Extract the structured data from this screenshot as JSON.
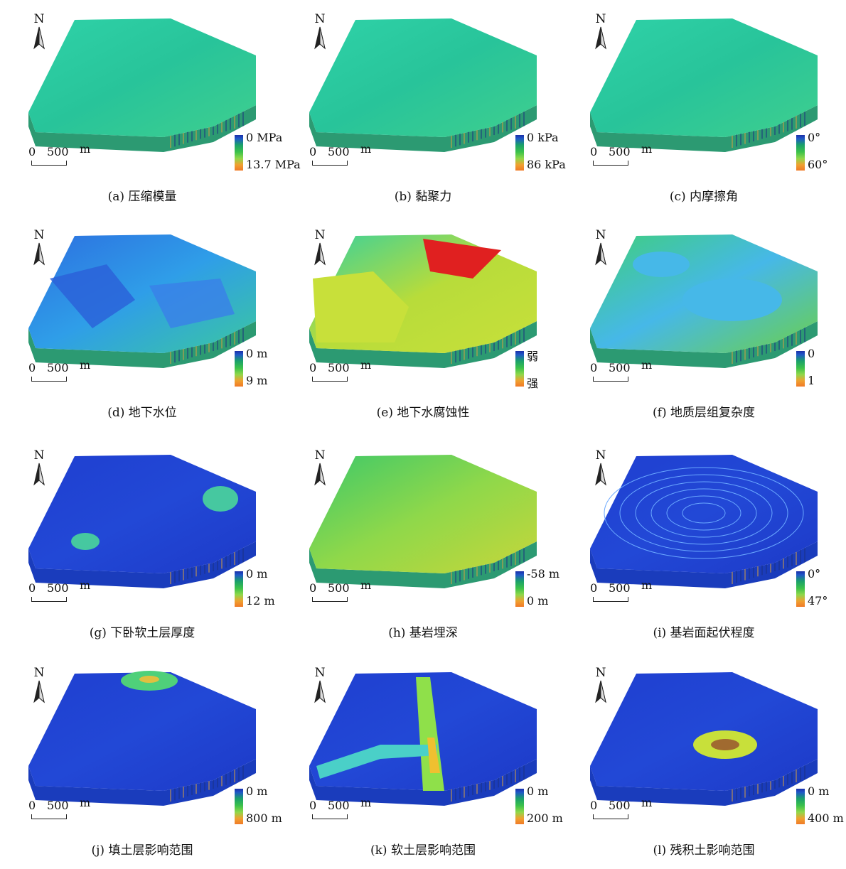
{
  "north_label": "N",
  "scale": {
    "zero": "0",
    "distance": "500",
    "unit": "m"
  },
  "panels": [
    {
      "caption": "(a)  压缩模量",
      "legend_top": "0 MPa",
      "legend_bottom": "13.7 MPa",
      "palette": "cyan-green",
      "feature": "none"
    },
    {
      "caption": "(b)  黏聚力",
      "legend_top": "0 kPa",
      "legend_bottom": "86  kPa",
      "palette": "cyan-green",
      "feature": "none"
    },
    {
      "caption": "(c)  内摩擦角",
      "legend_top": "0°",
      "legend_bottom": "60°",
      "palette": "cyan-green",
      "feature": "none"
    },
    {
      "caption": "(d)   地下水位",
      "legend_top": "0 m",
      "legend_bottom": "9 m",
      "palette": "blue-cyan",
      "feature": "facets"
    },
    {
      "caption": "(e)  地下水腐蚀性",
      "legend_top": "弱",
      "legend_bottom": "强",
      "palette": "cyan-yellow",
      "feature": "red"
    },
    {
      "caption": "(f)   地质层组复杂度",
      "legend_top": "0",
      "legend_bottom": "1",
      "palette": "green-lightblue",
      "feature": "patches"
    },
    {
      "caption": "(g) 下卧软土层厚度",
      "legend_top": "0 m",
      "legend_bottom": "12 m",
      "palette": "blue",
      "feature": "spots"
    },
    {
      "caption": "(h)   基岩埋深",
      "legend_top": "-58 m",
      "legend_bottom": "0 m",
      "palette": "green-yellow",
      "feature": "none"
    },
    {
      "caption": "(i)  基岩面起伏程度",
      "legend_top": "0°",
      "legend_bottom": "47°",
      "palette": "blue",
      "feature": "contours"
    },
    {
      "caption": "(j)   填土层影响范围",
      "legend_top": "0 m",
      "legend_bottom": "800 m",
      "palette": "blue",
      "feature": "top-spot"
    },
    {
      "caption": "(k)  软土层影响范围",
      "legend_top": "0 m",
      "legend_bottom": "200 m",
      "palette": "blue",
      "feature": "channels"
    },
    {
      "caption": "(l)  残积土影响范围",
      "legend_top": "0 m",
      "legend_bottom": "400 m",
      "palette": "blue",
      "feature": "center-spot"
    }
  ],
  "colors": {
    "cyan_green": "#2fd2a8",
    "blue": "#1f3fd0",
    "ramp_blue": "#1b2fa8",
    "ramp_orange": "#f07a28",
    "red": "#e02020",
    "yellow": "#c8e03a",
    "light_blue": "#46b8e8"
  }
}
